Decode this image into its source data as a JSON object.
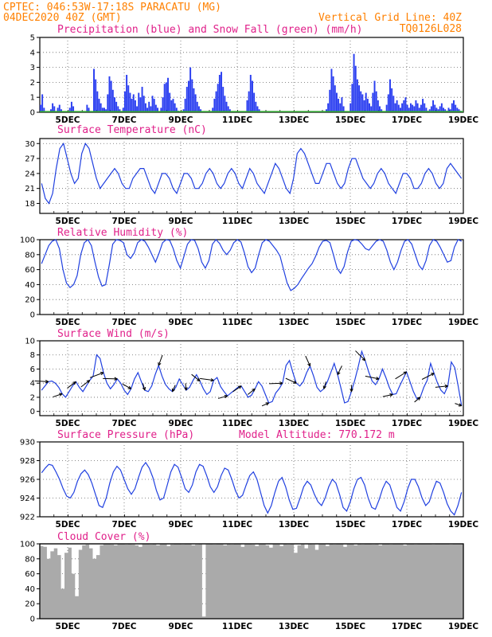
{
  "header": {
    "line1": "CPTEC:   046:53W-17:18S   PARACATU (MG)",
    "line2": "04DEC2020 40Z (GMT)",
    "vgrid": "Vertical Grid Line: 40Z",
    "code": "TQ0126L028"
  },
  "x_labels": [
    "5DEC",
    "7DEC",
    "9DEC",
    "11DEC",
    "13DEC",
    "15DEC",
    "17DEC",
    "19DEC"
  ],
  "colors": {
    "line": "#2040e0",
    "precip": "#2a3ef0",
    "snow": "#30a030",
    "cloud": "#aaaaaa",
    "title": "#e0208a",
    "header": "#ff8000"
  },
  "chart_data": [
    {
      "type": "bar",
      "title": "Precipitation (blue) and Snow Fall (green) (mm/h)",
      "ylim": [
        0,
        5
      ],
      "yticks": [
        0,
        1,
        2,
        3,
        4,
        5
      ],
      "series": [
        {
          "name": "Precipitation",
          "values": [
            0.5,
            1.2,
            0.3,
            0,
            0,
            0,
            0.2,
            0.6,
            0.4,
            0,
            0.3,
            0.5,
            0.2,
            0,
            0,
            0,
            0,
            0.3,
            0.7,
            0.4,
            0,
            0,
            0,
            0,
            0,
            0,
            0,
            0.5,
            0.3,
            0,
            0,
            2.9,
            2.2,
            1.4,
            0.9,
            0.6,
            0.3,
            0.3,
            0.2,
            1.2,
            2.4,
            2.1,
            1.5,
            1.0,
            0.7,
            0.4,
            0.2,
            0,
            0.3,
            1.4,
            2.5,
            1.8,
            1.3,
            0.9,
            1.2,
            0.8,
            0.4,
            1.3,
            1.0,
            1.7,
            1.1,
            0.6,
            0.3,
            0.7,
            0.4,
            1.1,
            0.9,
            0.5,
            0.3,
            0,
            0.3,
            1.0,
            1.9,
            2.0,
            2.3,
            1.3,
            0.8,
            0.9,
            0.6,
            0.3,
            0.1,
            0,
            0,
            0.2,
            0.9,
            1.7,
            2.1,
            3.0,
            2.2,
            1.6,
            1.2,
            0.7,
            0.4,
            0.2,
            0,
            0,
            0,
            0,
            0,
            0,
            0.3,
            0.9,
            1.4,
            1.9,
            2.5,
            2.7,
            1.7,
            1.1,
            0.7,
            0.4,
            0.2,
            0,
            0,
            0,
            0,
            0,
            0,
            0,
            0,
            0,
            0.8,
            1.4,
            2.5,
            2.1,
            1.3,
            0.7,
            0.4,
            0.2,
            0,
            0,
            0,
            0,
            0,
            0,
            0,
            0,
            0,
            0,
            0,
            0,
            0,
            0,
            0,
            0,
            0,
            0,
            0,
            0,
            0,
            0,
            0,
            0,
            0,
            0,
            0,
            0,
            0,
            0,
            0,
            0,
            0,
            0,
            0,
            0,
            0,
            0,
            0.2,
            0.6,
            1.5,
            2.9,
            2.4,
            1.8,
            1.3,
            0.9,
            0.6,
            1.0,
            0.4,
            0,
            0,
            0,
            0.6,
            1.9,
            3.9,
            3.1,
            2.2,
            1.8,
            1.4,
            1.2,
            0.8,
            1.3,
            0.9,
            0.6,
            0.4,
            1.3,
            2.1,
            1.4,
            0.8,
            0.4,
            0.2,
            0,
            0,
            0.5,
            1.2,
            2.2,
            1.6,
            1.1,
            0.6,
            0.8,
            0.5,
            0.3,
            0.6,
            0.8,
            1.0,
            0.5,
            0.3,
            0.6,
            0.5,
            0.4,
            0.8,
            0.6,
            0.3,
            0.5,
            0.9,
            0.6,
            0.3,
            0.1,
            0.2,
            0.4,
            0.8,
            0.5,
            0.3,
            0.2,
            0.4,
            0.6,
            0.3,
            0.2,
            0.1,
            0.3,
            0.2,
            0.6,
            0.8,
            0.5,
            0.3,
            0.2,
            0.1,
            0
          ]
        },
        {
          "name": "Snow Fall",
          "values": [
            0,
            0
          ]
        }
      ]
    },
    {
      "type": "line",
      "title": "Surface Temperature (nC)",
      "ylim": [
        16,
        31
      ],
      "yticks": [
        18,
        21,
        24,
        27,
        30
      ],
      "series": [
        {
          "name": "Temperature",
          "values": [
            22,
            19,
            18,
            20,
            25,
            29,
            30,
            27,
            24,
            22,
            23,
            28,
            30,
            29,
            26,
            23,
            21,
            22,
            23,
            24,
            25,
            24,
            22,
            21,
            21,
            23,
            24,
            25,
            25,
            23,
            21,
            20,
            22,
            24,
            24,
            23,
            21,
            20,
            22,
            24,
            24,
            23,
            21,
            21,
            22,
            24,
            25,
            24,
            22,
            21,
            22,
            24,
            25,
            24,
            22,
            21,
            23,
            25,
            24,
            22,
            21,
            20,
            22,
            24,
            26,
            25,
            23,
            21,
            20,
            23,
            28,
            29,
            28,
            26,
            24,
            22,
            22,
            24,
            26,
            26,
            24,
            22,
            21,
            22,
            25,
            27,
            27,
            25,
            23,
            22,
            21,
            22,
            24,
            25,
            24,
            22,
            21,
            20,
            22,
            24,
            24,
            23,
            21,
            21,
            22,
            24,
            25,
            24,
            22,
            21,
            22,
            25,
            26,
            25,
            24,
            23
          ]
        }
      ]
    },
    {
      "type": "line",
      "title": "Relative Humidity (%)",
      "ylim": [
        0,
        100
      ],
      "yticks": [
        0,
        20,
        40,
        60,
        80,
        100
      ],
      "series": [
        {
          "name": "Relative Humidity",
          "values": [
            68,
            80,
            92,
            98,
            100,
            88,
            60,
            42,
            36,
            40,
            52,
            80,
            96,
            100,
            92,
            70,
            50,
            38,
            40,
            66,
            94,
            100,
            99,
            96,
            80,
            75,
            82,
            96,
            100,
            98,
            90,
            80,
            70,
            82,
            96,
            100,
            99,
            88,
            72,
            62,
            78,
            94,
            100,
            99,
            88,
            70,
            62,
            72,
            94,
            100,
            95,
            86,
            80,
            86,
            96,
            100,
            97,
            82,
            64,
            56,
            62,
            80,
            96,
            100,
            98,
            92,
            86,
            78,
            60,
            42,
            32,
            35,
            40,
            48,
            55,
            62,
            68,
            78,
            90,
            98,
            99,
            96,
            80,
            62,
            55,
            64,
            84,
            98,
            100,
            99,
            94,
            88,
            86,
            92,
            98,
            100,
            98,
            86,
            70,
            60,
            70,
            86,
            98,
            100,
            94,
            80,
            66,
            60,
            72,
            92,
            100,
            98,
            90,
            80,
            70,
            72,
            90,
            100,
            98
          ]
        }
      ]
    },
    {
      "type": "line",
      "title": "Surface Wind (m/s)",
      "ylim": [
        -0.6,
        10
      ],
      "yticks": [
        0,
        2,
        4,
        6,
        8,
        10
      ],
      "series": [
        {
          "name": "Wind speed",
          "values": [
            3,
            3.6,
            4.2,
            4.3,
            4.0,
            3.4,
            2.5,
            2.0,
            2.8,
            3.6,
            4.2,
            3.4,
            2.8,
            3.6,
            4.4,
            5.0,
            8.0,
            7.5,
            5.5,
            4.0,
            3.2,
            3.8,
            4.6,
            4.0,
            3.0,
            2.4,
            3.2,
            4.6,
            5.5,
            4.2,
            3.0,
            2.8,
            3.6,
            5.2,
            6.5,
            5.0,
            3.8,
            3.2,
            2.8,
            3.4,
            4.6,
            3.8,
            3.0,
            3.4,
            4.4,
            5.2,
            4.3,
            3.2,
            2.4,
            2.8,
            4.4,
            4.8,
            3.5,
            2.8,
            2.2,
            2.6,
            3.0,
            3.4,
            3.6,
            2.8,
            2.0,
            2.3,
            3.2,
            4.2,
            3.6,
            2.4,
            1.2,
            1.4,
            2.6,
            3.2,
            4.0,
            6.5,
            7.2,
            5.5,
            4.0,
            3.6,
            4.2,
            5.5,
            6.4,
            5.0,
            3.4,
            2.8,
            3.2,
            4.2,
            5.5,
            6.8,
            5.2,
            3.2,
            1.2,
            1.4,
            2.8,
            4.5,
            6.4,
            8.5,
            7.2,
            5.6,
            4.3,
            3.8,
            4.6,
            6.0,
            4.8,
            3.4,
            2.4,
            2.5,
            3.6,
            4.6,
            5.6,
            4.2,
            2.8,
            1.8,
            2.0,
            3.4,
            4.4,
            6.8,
            5.4,
            4.0,
            3.0,
            2.5,
            3.6,
            7.0,
            6.2,
            3.6,
            0.8
          ]
        }
      ]
    },
    {
      "type": "line",
      "title": "Surface Pressure (hPa)",
      "subtitle": "Model Altitude: 770.172 m",
      "ylim": [
        922,
        930
      ],
      "yticks": [
        922,
        924,
        926,
        928,
        930
      ],
      "series": [
        {
          "name": "Pressure",
          "values": [
            926.7,
            927.2,
            927.6,
            927.5,
            926.8,
            926.0,
            925.0,
            924.2,
            924.0,
            924.6,
            925.8,
            926.6,
            927.0,
            926.5,
            925.6,
            924.4,
            923.2,
            923.0,
            924.0,
            925.6,
            926.8,
            927.4,
            927.0,
            926.0,
            925.0,
            924.4,
            925.0,
            926.2,
            927.3,
            927.8,
            927.2,
            926.2,
            924.8,
            923.8,
            924.0,
            925.4,
            926.8,
            927.6,
            927.3,
            926.2,
            925.0,
            924.6,
            925.4,
            926.8,
            927.6,
            927.4,
            926.4,
            925.2,
            924.6,
            925.2,
            926.4,
            927.2,
            927.0,
            926.0,
            924.8,
            924.0,
            924.3,
            925.4,
            926.4,
            926.8,
            926.0,
            924.6,
            923.2,
            922.4,
            923.2,
            924.6,
            925.8,
            926.2,
            925.2,
            923.8,
            922.8,
            922.9,
            924.0,
            925.2,
            925.8,
            925.4,
            924.4,
            923.6,
            923.2,
            924.0,
            925.2,
            926.0,
            925.6,
            924.4,
            923.0,
            922.6,
            923.6,
            925.0,
            926.0,
            926.2,
            925.4,
            924.0,
            923.0,
            922.8,
            923.8,
            925.0,
            925.8,
            925.4,
            924.2,
            923.0,
            922.6,
            923.6,
            925.0,
            926.0,
            926.0,
            925.2,
            924.0,
            923.2,
            923.6,
            924.8,
            925.8,
            925.6,
            924.6,
            923.4,
            922.6,
            922.2,
            923.2,
            924.6
          ]
        }
      ]
    },
    {
      "type": "area",
      "title": "Cloud Cover (%)",
      "ylim": [
        0,
        100
      ],
      "yticks": [
        0,
        20,
        40,
        60,
        80,
        100
      ],
      "series": [
        {
          "name": "Cloud cover",
          "values": [
            97,
            96,
            80,
            90,
            94,
            85,
            40,
            88,
            95,
            60,
            30,
            92,
            98,
            99,
            94,
            80,
            85,
            98,
            100,
            100,
            99,
            98,
            100,
            100,
            99,
            100,
            99,
            98,
            96,
            100,
            100,
            99,
            100,
            98,
            100,
            100,
            97,
            99,
            100,
            100,
            99,
            100,
            100,
            98,
            99,
            100,
            3,
            100,
            100,
            99,
            100,
            100,
            98,
            100,
            99,
            100,
            100,
            96,
            100,
            100,
            99,
            97,
            100,
            100,
            98,
            95,
            100,
            100,
            97,
            100,
            99,
            100,
            88,
            98,
            100,
            94,
            100,
            99,
            92,
            100,
            100,
            97,
            100,
            99,
            100,
            100,
            96,
            100,
            100,
            98,
            100,
            99,
            100,
            100,
            99,
            100,
            98,
            100,
            100,
            99,
            100,
            100,
            100,
            98,
            100,
            100,
            99,
            100,
            100,
            100,
            100,
            99,
            100,
            100,
            100,
            100,
            99,
            100,
            100,
            100
          ]
        }
      ]
    }
  ]
}
